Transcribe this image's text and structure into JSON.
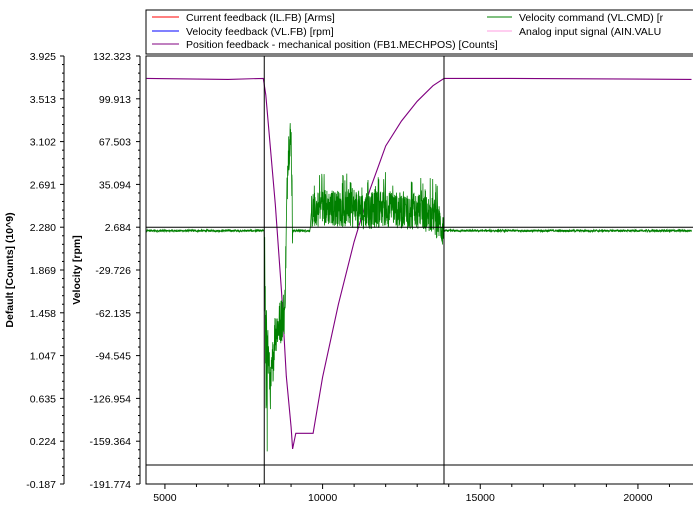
{
  "chart_data": {
    "type": "line",
    "legend": {
      "placement": "top",
      "entries": [
        {
          "label": "Current feedback (IL.FB) [Arms]",
          "color": "#ff0000"
        },
        {
          "label": "Velocity feedback (VL.FB) [rpm]",
          "color": "#0000ff"
        },
        {
          "label": "Position feedback - mechanical position (FB1.MECHPOS) [Counts]",
          "color": "#800080"
        },
        {
          "label": "Velocity command (VL.CMD) [r",
          "color": "#008000"
        },
        {
          "label": "Analog input signal (AIN.VALU",
          "color": "#ff9de2"
        }
      ]
    },
    "left_axis": {
      "label": "Default [Counts] (10^9)",
      "ylim": [
        -0.187,
        3.925
      ],
      "ticks": [
        "3.925",
        "3.513",
        "3.102",
        "2.691",
        "2.280",
        "1.869",
        "1.458",
        "1.047",
        "0.635",
        "0.224",
        "-0.187"
      ]
    },
    "right_axis": {
      "label": "Velocity [rpm]",
      "ylim": [
        -191.774,
        132.323
      ],
      "ticks": [
        "132.323",
        "99.913",
        "67.503",
        "35.094",
        "2.684",
        "-29.726",
        "-62.135",
        "-94.545",
        "-126.954",
        "-159.364",
        "-191.774"
      ]
    },
    "x_axis": {
      "xlim": [
        4400,
        22000
      ],
      "ticks": [
        {
          "value": 5000,
          "label": "5000"
        },
        {
          "value": 10000,
          "label": "10000"
        },
        {
          "value": 15000,
          "label": "15000"
        },
        {
          "value": 20000,
          "label": "20000"
        }
      ]
    },
    "cursors": [
      8150,
      13850
    ],
    "reference_line_y_rpm": 2.684,
    "series": [
      {
        "name": "Position feedback - mechanical position (FB1.MECHPOS) [Counts]",
        "axis": "left",
        "color": "#800080",
        "points": [
          [
            4420,
            3.71
          ],
          [
            7000,
            3.7
          ],
          [
            8120,
            3.71
          ],
          [
            8200,
            3.55
          ],
          [
            8500,
            2.5
          ],
          [
            8700,
            1.65
          ],
          [
            8850,
            0.85
          ],
          [
            9000,
            0.36
          ],
          [
            9050,
            0.15
          ],
          [
            9150,
            0.3
          ],
          [
            9700,
            0.3
          ],
          [
            10000,
            0.84
          ],
          [
            10500,
            1.54
          ],
          [
            11000,
            2.14
          ],
          [
            11500,
            2.64
          ],
          [
            12000,
            3.06
          ],
          [
            12500,
            3.3
          ],
          [
            13000,
            3.49
          ],
          [
            13500,
            3.64
          ],
          [
            13850,
            3.71
          ],
          [
            16000,
            3.71
          ],
          [
            21700,
            3.7
          ]
        ]
      },
      {
        "name": "Velocity command (VL.CMD)",
        "axis": "right",
        "color": "#008000",
        "noise": true,
        "points": [
          [
            4420,
            0
          ],
          [
            8150,
            0
          ],
          [
            8200,
            -70
          ],
          [
            8350,
            -120
          ],
          [
            8500,
            -75
          ],
          [
            8650,
            -70
          ],
          [
            8800,
            -60
          ],
          [
            8900,
            60
          ],
          [
            9000,
            72
          ],
          [
            9050,
            0
          ],
          [
            9600,
            0
          ],
          [
            9650,
            15
          ],
          [
            10000,
            18
          ],
          [
            10500,
            17
          ],
          [
            11000,
            15
          ],
          [
            11500,
            15
          ],
          [
            12000,
            17
          ],
          [
            12500,
            15
          ],
          [
            13000,
            14
          ],
          [
            13500,
            12
          ],
          [
            13850,
            0
          ],
          [
            21700,
            0
          ]
        ]
      }
    ]
  }
}
